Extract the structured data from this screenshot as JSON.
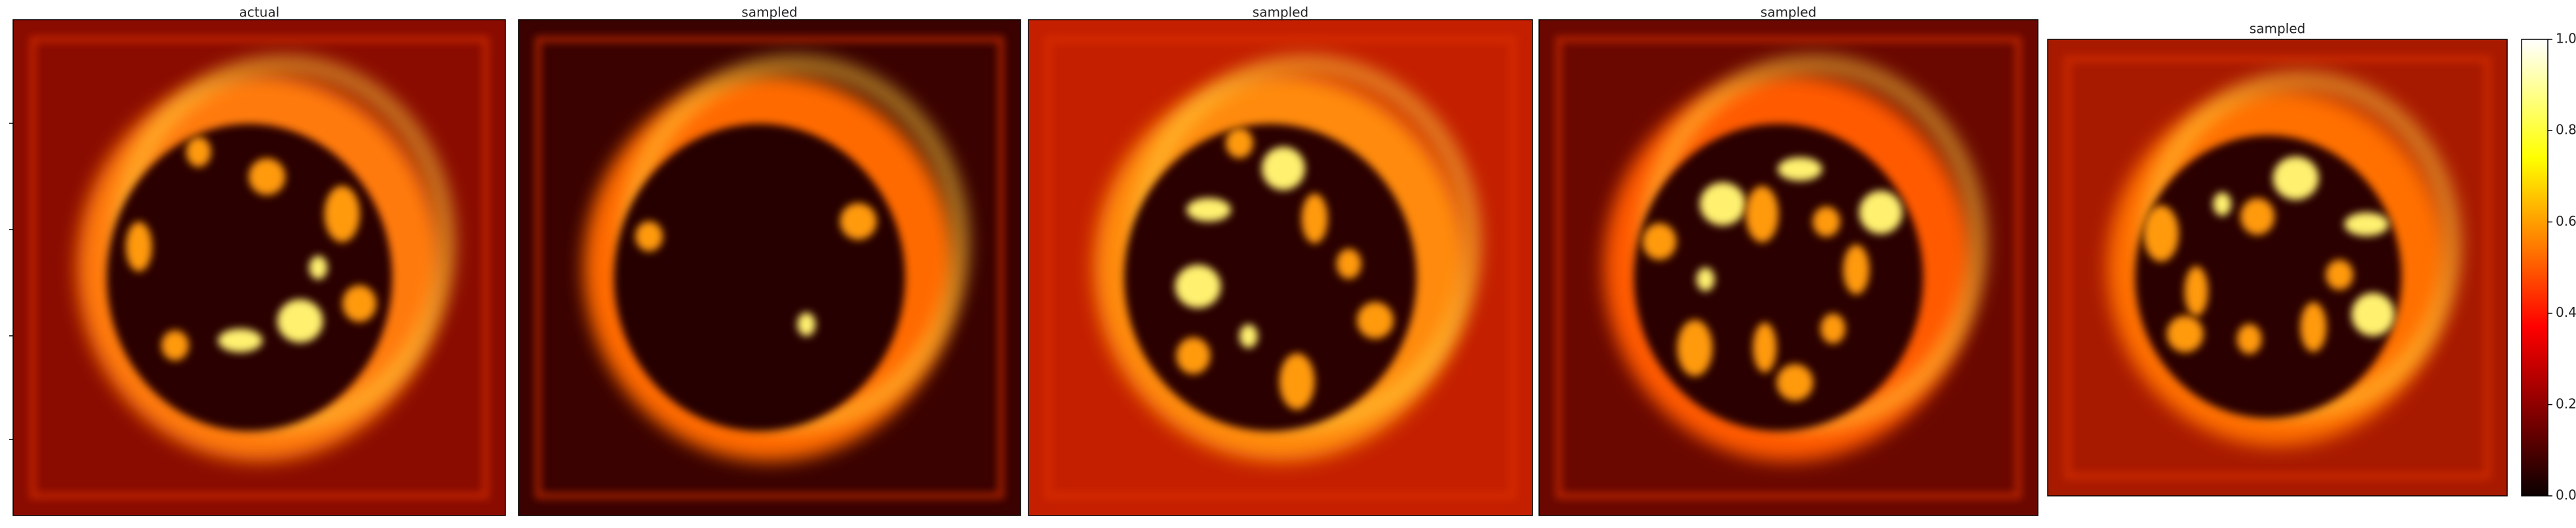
{
  "chart_data": {
    "type": "heatmap",
    "panels": [
      {
        "title": "actual"
      },
      {
        "title": "sampled"
      },
      {
        "title": "sampled"
      },
      {
        "title": "sampled"
      },
      {
        "title": "sampled"
      }
    ],
    "colormap": "hot",
    "clim": [
      0,
      1
    ],
    "colorbar_ticks": [
      {
        "value": 0,
        "label": "0.0"
      },
      {
        "value": 0.2,
        "label": "0.2"
      },
      {
        "value": 0.4,
        "label": "0.4"
      },
      {
        "value": 0.6,
        "label": "0.6"
      },
      {
        "value": 0.8,
        "label": "0.8"
      },
      {
        "value": 1,
        "label": "1.0"
      }
    ]
  }
}
